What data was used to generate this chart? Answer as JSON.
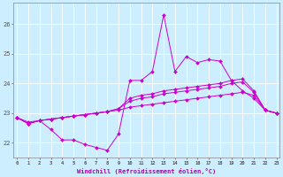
{
  "xlabel": "Windchill (Refroidissement éolien,°C)",
  "background_color": "#cceeff",
  "grid_color": "#ffffff",
  "line_color": "#cc00cc",
  "x": [
    0,
    1,
    2,
    3,
    4,
    5,
    6,
    7,
    8,
    9,
    10,
    11,
    12,
    13,
    14,
    15,
    16,
    17,
    18,
    19,
    20,
    21,
    22,
    23
  ],
  "series1": [
    22.85,
    22.65,
    22.75,
    22.45,
    22.1,
    22.1,
    21.95,
    21.85,
    21.75,
    22.3,
    24.1,
    24.1,
    24.4,
    26.3,
    24.4,
    24.9,
    24.7,
    24.8,
    24.75,
    24.1,
    23.75,
    23.5,
    23.1,
    23.0
  ],
  "series2": [
    22.85,
    22.65,
    22.75,
    22.8,
    22.85,
    22.9,
    22.95,
    23.0,
    23.05,
    23.15,
    23.5,
    23.6,
    23.65,
    23.75,
    23.8,
    23.85,
    23.9,
    23.95,
    24.0,
    24.1,
    24.15,
    23.75,
    23.1,
    23.0
  ],
  "series3": [
    22.85,
    22.65,
    22.75,
    22.8,
    22.85,
    22.9,
    22.95,
    23.0,
    23.05,
    23.15,
    23.4,
    23.5,
    23.55,
    23.65,
    23.7,
    23.75,
    23.8,
    23.85,
    23.9,
    24.0,
    24.05,
    23.7,
    23.1,
    23.0
  ],
  "series4": [
    22.85,
    22.7,
    22.75,
    22.8,
    22.85,
    22.9,
    22.95,
    23.0,
    23.05,
    23.1,
    23.2,
    23.25,
    23.3,
    23.35,
    23.4,
    23.45,
    23.5,
    23.55,
    23.6,
    23.65,
    23.7,
    23.6,
    23.1,
    23.0
  ],
  "ylim": [
    21.5,
    26.7
  ],
  "yticks": [
    22,
    23,
    24,
    25,
    26
  ],
  "xticks": [
    0,
    1,
    2,
    3,
    4,
    5,
    6,
    7,
    8,
    9,
    10,
    11,
    12,
    13,
    14,
    15,
    16,
    17,
    18,
    19,
    20,
    21,
    22,
    23
  ]
}
